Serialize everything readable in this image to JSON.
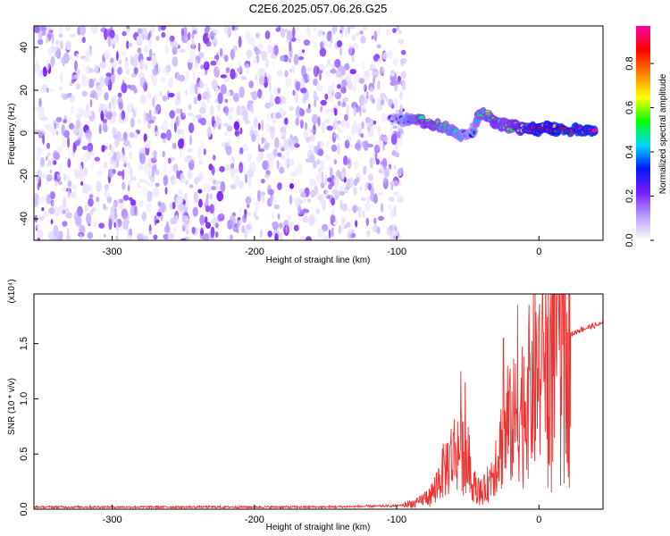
{
  "title": "C2E6.2025.057.06.26.G25",
  "chart_data": [
    {
      "type": "heatmap",
      "xlabel": "Height of straight line (km)",
      "ylabel": "Frequency (Hz)",
      "xlim": [
        -355,
        45
      ],
      "ylim": [
        -50,
        50
      ],
      "x_ticks": [
        -300,
        -200,
        -100,
        0
      ],
      "y_ticks": [
        -40,
        -20,
        0,
        20,
        40
      ],
      "noise_region_x": [
        -355,
        -95
      ],
      "signal_track": [
        {
          "x": -105,
          "y": 6.0,
          "a": 0.25
        },
        {
          "x": -95,
          "y": 6.5,
          "a": 0.35
        },
        {
          "x": -88,
          "y": 7.0,
          "a": 0.5
        },
        {
          "x": -80,
          "y": 5.5,
          "a": 0.6
        },
        {
          "x": -72,
          "y": 4.0,
          "a": 0.55
        },
        {
          "x": -64,
          "y": 2.0,
          "a": 0.5
        },
        {
          "x": -58,
          "y": 0.0,
          "a": 0.45
        },
        {
          "x": -52,
          "y": -1.0,
          "a": 0.4
        },
        {
          "x": -46,
          "y": 0.5,
          "a": 0.35
        },
        {
          "x": -42,
          "y": 10.0,
          "a": 0.5
        },
        {
          "x": -36,
          "y": 8.0,
          "a": 0.55
        },
        {
          "x": -30,
          "y": 5.0,
          "a": 0.6
        },
        {
          "x": -24,
          "y": 3.5,
          "a": 0.55
        },
        {
          "x": -18,
          "y": 3.0,
          "a": 0.6
        },
        {
          "x": -12,
          "y": 2.5,
          "a": 0.7
        },
        {
          "x": -6,
          "y": 2.0,
          "a": 0.8
        },
        {
          "x": 0,
          "y": 1.5,
          "a": 0.9
        },
        {
          "x": 6,
          "y": 3.0,
          "a": 0.85
        },
        {
          "x": 12,
          "y": 1.5,
          "a": 0.9
        },
        {
          "x": 20,
          "y": 1.5,
          "a": 0.95
        },
        {
          "x": 30,
          "y": 1.5,
          "a": 0.95
        },
        {
          "x": 40,
          "y": 1.5,
          "a": 0.95
        }
      ],
      "colorbar": {
        "label": "Normalized spectral amplitude",
        "ticks": [
          0.0,
          0.2,
          0.4,
          0.6,
          0.8
        ],
        "range": [
          0.0,
          0.97
        ],
        "colormap": [
          "#ffffff",
          "#b9a0ff",
          "#7a1cff",
          "#0018ff",
          "#00d7ff",
          "#00ff00",
          "#ffff00",
          "#ff8000",
          "#ff0000",
          "#ff00a0"
        ]
      }
    },
    {
      "type": "line",
      "xlabel": "Height of straight line (km)",
      "ylabel": "SNR (10 * v/v)",
      "yscale_note": "(x10⁴)",
      "xlim": [
        -355,
        45
      ],
      "ylim": [
        0.0,
        1.95
      ],
      "x_ticks": [
        -300,
        -200,
        -100,
        0
      ],
      "y_ticks": [
        0.0,
        0.5,
        1.0,
        1.5
      ],
      "line_color": "#ee3333",
      "envelope": [
        {
          "x": -355,
          "y": 0.02
        },
        {
          "x": -150,
          "y": 0.02
        },
        {
          "x": -100,
          "y": 0.03
        },
        {
          "x": -85,
          "y": 0.06
        },
        {
          "x": -75,
          "y": 0.15
        },
        {
          "x": -65,
          "y": 0.4
        },
        {
          "x": -58,
          "y": 0.55
        },
        {
          "x": -50,
          "y": 0.45
        },
        {
          "x": -45,
          "y": 0.2
        },
        {
          "x": -40,
          "y": 0.15
        },
        {
          "x": -35,
          "y": 0.25
        },
        {
          "x": -28,
          "y": 0.55
        },
        {
          "x": -22,
          "y": 0.7
        },
        {
          "x": -15,
          "y": 0.85
        },
        {
          "x": -10,
          "y": 1.0
        },
        {
          "x": -5,
          "y": 1.1
        },
        {
          "x": 0,
          "y": 1.25
        },
        {
          "x": 5,
          "y": 1.35
        },
        {
          "x": 10,
          "y": 1.45
        },
        {
          "x": 18,
          "y": 1.55
        },
        {
          "x": 28,
          "y": 1.62
        },
        {
          "x": 38,
          "y": 1.66
        },
        {
          "x": 45,
          "y": 1.68
        }
      ],
      "spikes": [
        {
          "x": -55,
          "y": 1.25
        },
        {
          "x": -52,
          "y": 1.15
        },
        {
          "x": -25,
          "y": 1.55
        },
        {
          "x": -22,
          "y": 1.3
        },
        {
          "x": -15,
          "y": 1.85
        },
        {
          "x": 3,
          "y": 1.6
        },
        {
          "x": 8,
          "y": 1.95
        },
        {
          "x": 14,
          "y": 1.7
        },
        {
          "x": 20,
          "y": 1.6
        }
      ]
    }
  ]
}
